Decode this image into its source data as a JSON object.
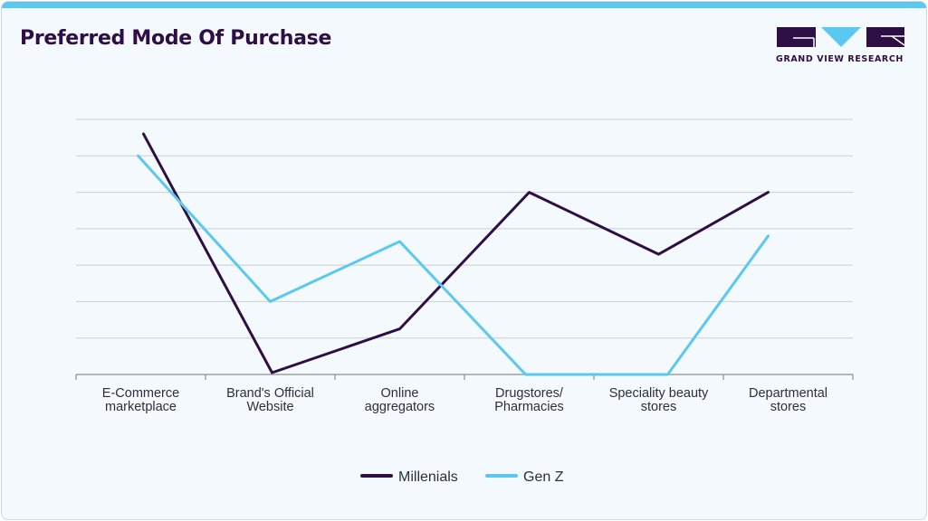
{
  "header": {
    "title": "Preferred Mode Of Purchase",
    "logo_text": "GRAND VIEW RESEARCH"
  },
  "colors": {
    "millenials": "#2e0f45",
    "genz": "#5bc8f0",
    "grid": "#c9cfd3",
    "axis": "#8a9096"
  },
  "chart_data": {
    "type": "line",
    "title": "Preferred Mode Of Purchase",
    "xlabel": "",
    "ylabel": "",
    "categories": [
      [
        "E-Commerce",
        "marketplace"
      ],
      [
        "Brand's Official",
        "Website"
      ],
      [
        "Online",
        "aggregators"
      ],
      [
        "Drugstores/",
        "Pharmacies"
      ],
      [
        "Speciality beauty",
        "stores"
      ],
      [
        "Departmental",
        "stores"
      ]
    ],
    "ylim": [
      0,
      7
    ],
    "grid": true,
    "legend_position": "bottom-center",
    "series": [
      {
        "name": "Millenials",
        "values": [
          6.6,
          0.05,
          1.25,
          5.0,
          3.3,
          5.0
        ]
      },
      {
        "name": "Gen Z",
        "values": [
          6.0,
          2.0,
          3.65,
          0.0,
          0.0,
          3.8
        ]
      }
    ]
  }
}
